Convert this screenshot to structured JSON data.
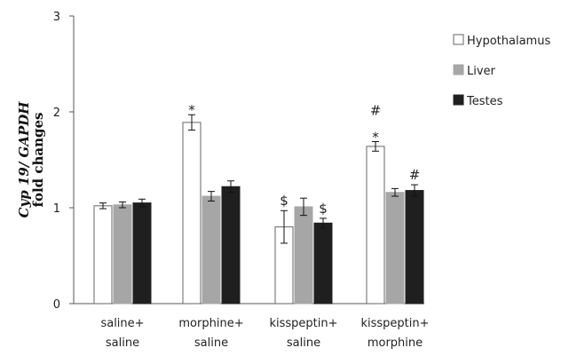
{
  "chart_data": {
    "type": "bar",
    "ylabel_italic": "Cyp 19/ GAPDH",
    "ylabel_bold": "fold changes",
    "ylim": [
      0,
      3
    ],
    "yticks": [
      "0",
      "1",
      "2",
      "3"
    ],
    "legend_position": "right",
    "categories": [
      {
        "line1": "saline+",
        "line2": "saline"
      },
      {
        "line1": "morphine+",
        "line2": "saline"
      },
      {
        "line1": "kisspeptin+",
        "line2": "saline"
      },
      {
        "line1": "kisspeptin+",
        "line2": "morphine"
      }
    ],
    "series": [
      {
        "name": "Hypothalamus",
        "color": "#ffffff",
        "values": [
          1.02,
          1.89,
          0.8,
          1.64
        ],
        "errors": [
          0.03,
          0.08,
          0.17,
          0.05
        ]
      },
      {
        "name": "Liver",
        "color": "#a6a6a6",
        "values": [
          1.03,
          1.12,
          1.01,
          1.16
        ],
        "errors": [
          0.03,
          0.05,
          0.09,
          0.04
        ]
      },
      {
        "name": "Testes",
        "color": "#1f1f1f",
        "values": [
          1.05,
          1.22,
          0.84,
          1.18
        ],
        "errors": [
          0.04,
          0.06,
          0.05,
          0.06
        ]
      }
    ],
    "annotations": [
      {
        "category": 1,
        "series": 0,
        "lines": [
          "*"
        ]
      },
      {
        "category": 2,
        "series": 0,
        "lines": [
          "$"
        ]
      },
      {
        "category": 2,
        "series": 2,
        "lines": [
          "$"
        ]
      },
      {
        "category": 3,
        "series": 0,
        "lines": [
          "#",
          "*"
        ]
      },
      {
        "category": 3,
        "series": 2,
        "lines": [
          "#"
        ]
      }
    ]
  }
}
